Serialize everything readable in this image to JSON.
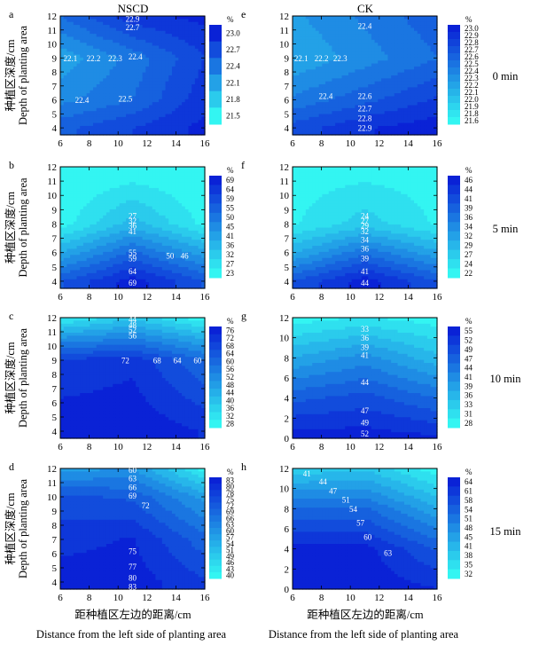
{
  "figure": {
    "col_titles": [
      "NSCD",
      "CK"
    ],
    "row_labels": [
      "0 min",
      "5 min",
      "10 min",
      "15 min"
    ],
    "ylabel_cn": "种植区深度/cm",
    "ylabel_en": "Depth of planting area",
    "xlabel_cn": "距种植区左边的距离/cm",
    "xlabel_en": "Distance from the left side of planting area",
    "colorbar_unit": "%",
    "colors": {
      "low": "#33f5f2",
      "high": "#0a22d6",
      "label": "#ffffff",
      "axis": "#000000"
    }
  },
  "chart_data": [
    {
      "id": "a",
      "type": "heatmap",
      "title": "NSCD",
      "time": "0 min",
      "xlim": [
        6,
        16
      ],
      "ylim": [
        3.5,
        12
      ],
      "xticks": [
        6,
        8,
        10,
        12,
        14,
        16
      ],
      "yticks": [
        4,
        5,
        6,
        7,
        8,
        9,
        10,
        11,
        12
      ],
      "zlim": [
        21.45,
        23.1
      ],
      "colorbar_ticks": [
        "23.0",
        "22.7",
        "22.4",
        "22.1",
        "21.8",
        "21.5"
      ],
      "gradient": [
        [
          6,
          4,
          22.6
        ],
        [
          11,
          4,
          22.8
        ],
        [
          16,
          4,
          23.0
        ],
        [
          6,
          6,
          22.3
        ],
        [
          11,
          6,
          22.5
        ],
        [
          16,
          6,
          22.9
        ],
        [
          6,
          9,
          22.1
        ],
        [
          11,
          9,
          22.4
        ],
        [
          16,
          9,
          22.8
        ],
        [
          6,
          12,
          22.5
        ],
        [
          11,
          12,
          22.9
        ],
        [
          16,
          12,
          23.0
        ]
      ],
      "labels": [
        [
          "22.9",
          11,
          11.8
        ],
        [
          "22.7",
          11,
          11.2
        ],
        [
          "22.1",
          6.7,
          9
        ],
        [
          "22.2",
          8.3,
          9
        ],
        [
          "22.3",
          9.8,
          9
        ],
        [
          "22.4",
          11.2,
          9.1
        ],
        [
          "22.4",
          7.5,
          6
        ],
        [
          "22.5",
          10.5,
          6.1
        ]
      ]
    },
    {
      "id": "e",
      "type": "heatmap",
      "title": "CK",
      "time": "0 min",
      "xlim": [
        6,
        16
      ],
      "ylim": [
        3.5,
        12
      ],
      "xticks": [
        6,
        8,
        10,
        12,
        14,
        16
      ],
      "yticks": [
        4,
        5,
        6,
        7,
        8,
        9,
        10,
        11,
        12
      ],
      "zlim": [
        21.55,
        23.05
      ],
      "colorbar_ticks": [
        "23.0",
        "22.9",
        "22.8",
        "22.7",
        "22.6",
        "22.5",
        "22.4",
        "22.3",
        "22.2",
        "22.1",
        "22.0",
        "21.9",
        "21.8",
        "21.6"
      ],
      "gradient": [
        [
          6,
          4,
          22.7
        ],
        [
          11,
          4,
          22.9
        ],
        [
          16,
          4,
          23.0
        ],
        [
          6,
          6,
          22.4
        ],
        [
          11,
          6,
          22.6
        ],
        [
          16,
          6,
          22.8
        ],
        [
          6,
          9,
          22.1
        ],
        [
          11,
          9,
          22.3
        ],
        [
          16,
          9,
          22.5
        ],
        [
          6,
          12,
          22.2
        ],
        [
          11,
          12,
          22.4
        ],
        [
          16,
          12,
          22.6
        ]
      ],
      "labels": [
        [
          "22.4",
          11,
          11.3
        ],
        [
          "22.1",
          6.6,
          9
        ],
        [
          "22.2",
          8,
          9
        ],
        [
          "22.3",
          9.3,
          9
        ],
        [
          "22.4",
          8.3,
          6.3
        ],
        [
          "22.6",
          11,
          6.3
        ],
        [
          "22.7",
          11,
          5.4
        ],
        [
          "22.8",
          11,
          4.7
        ],
        [
          "22.9",
          11,
          4
        ]
      ]
    },
    {
      "id": "b",
      "type": "heatmap",
      "title": "",
      "time": "5 min",
      "xlim": [
        6,
        16
      ],
      "ylim": [
        3.5,
        12
      ],
      "xticks": [
        6,
        8,
        10,
        12,
        14,
        16
      ],
      "yticks": [
        4,
        5,
        6,
        7,
        8,
        9,
        10,
        11,
        12
      ],
      "zlim": [
        22,
        72
      ],
      "colorbar_ticks": [
        "69",
        "64",
        "59",
        "55",
        "50",
        "45",
        "41",
        "36",
        "32",
        "27",
        "23"
      ],
      "gradient": [
        [
          6,
          4,
          58
        ],
        [
          11,
          4,
          70
        ],
        [
          16,
          4,
          58
        ],
        [
          6,
          6,
          40
        ],
        [
          11,
          6,
          55
        ],
        [
          16,
          6,
          42
        ],
        [
          6,
          8,
          24
        ],
        [
          11,
          8,
          38
        ],
        [
          16,
          8,
          25
        ],
        [
          6,
          12,
          22
        ],
        [
          11,
          12,
          22
        ],
        [
          16,
          12,
          22
        ]
      ],
      "labels": [
        [
          "27",
          11,
          8.6
        ],
        [
          "32",
          11,
          8.25
        ],
        [
          "36",
          11,
          7.9
        ],
        [
          "41",
          11,
          7.5
        ],
        [
          "55",
          11,
          6
        ],
        [
          "59",
          11,
          5.6
        ],
        [
          "50",
          13.6,
          5.8
        ],
        [
          "46",
          14.6,
          5.8
        ],
        [
          "64",
          11,
          4.7
        ],
        [
          "69",
          11,
          3.9
        ]
      ]
    },
    {
      "id": "f",
      "type": "heatmap",
      "title": "",
      "time": "5 min",
      "xlim": [
        6,
        16
      ],
      "ylim": [
        3.5,
        12
      ],
      "xticks": [
        6,
        8,
        10,
        12,
        14,
        16
      ],
      "yticks": [
        4,
        5,
        6,
        7,
        8,
        9,
        10,
        11,
        12
      ],
      "zlim": [
        21,
        47
      ],
      "colorbar_ticks": [
        "46",
        "44",
        "41",
        "39",
        "36",
        "34",
        "32",
        "29",
        "27",
        "24",
        "22"
      ],
      "gradient": [
        [
          6,
          4,
          40
        ],
        [
          11,
          4,
          46
        ],
        [
          16,
          4,
          40
        ],
        [
          6,
          6,
          30
        ],
        [
          11,
          6,
          37
        ],
        [
          16,
          6,
          31
        ],
        [
          6,
          8,
          23
        ],
        [
          11,
          8,
          27
        ],
        [
          16,
          8,
          23
        ],
        [
          6,
          12,
          22
        ],
        [
          11,
          12,
          22
        ],
        [
          16,
          12,
          22
        ]
      ],
      "labels": [
        [
          "24",
          11,
          8.6
        ],
        [
          "27",
          11,
          8.25
        ],
        [
          "29",
          11,
          7.9
        ],
        [
          "32",
          11,
          7.5
        ],
        [
          "34",
          11,
          6.9
        ],
        [
          "36",
          11,
          6.3
        ],
        [
          "39",
          11,
          5.6
        ],
        [
          "41",
          11,
          4.7
        ],
        [
          "44",
          11,
          3.9
        ]
      ]
    },
    {
      "id": "c",
      "type": "heatmap",
      "title": "",
      "time": "10 min",
      "xlim": [
        6,
        16
      ],
      "ylim": [
        3.5,
        12
      ],
      "xticks": [
        6,
        8,
        10,
        12,
        14,
        16
      ],
      "yticks": [
        4,
        5,
        6,
        7,
        8,
        9,
        10,
        11,
        12
      ],
      "zlim": [
        27,
        79
      ],
      "colorbar_ticks": [
        "76",
        "72",
        "68",
        "64",
        "60",
        "56",
        "52",
        "48",
        "44",
        "40",
        "36",
        "32",
        "28"
      ],
      "gradient": [
        [
          6,
          4,
          78
        ],
        [
          11,
          4,
          78
        ],
        [
          16,
          4,
          74
        ],
        [
          6,
          9,
          70
        ],
        [
          11,
          9,
          73
        ],
        [
          16,
          9,
          60
        ],
        [
          6,
          10.5,
          52
        ],
        [
          11,
          10.5,
          56
        ],
        [
          16,
          10.5,
          46
        ],
        [
          6,
          12,
          30
        ],
        [
          11,
          12,
          40
        ],
        [
          16,
          12,
          28
        ]
      ],
      "labels": [
        [
          "44",
          11,
          11.9
        ],
        [
          "48",
          11,
          11.5
        ],
        [
          "52",
          11,
          11.15
        ],
        [
          "56",
          11,
          10.75
        ],
        [
          "72",
          10.5,
          9
        ],
        [
          "68",
          12.7,
          9
        ],
        [
          "64",
          14.1,
          9
        ],
        [
          "60",
          15.5,
          9
        ]
      ]
    },
    {
      "id": "g",
      "type": "heatmap",
      "title": "",
      "time": "10 min",
      "xlim": [
        6,
        16
      ],
      "ylim": [
        0,
        12
      ],
      "xticks": [
        6,
        8,
        10,
        12,
        14,
        16
      ],
      "yticks": [
        0,
        2,
        4,
        6,
        8,
        10,
        12
      ],
      "zlim": [
        27,
        57
      ],
      "colorbar_ticks": [
        "55",
        "52",
        "49",
        "47",
        "44",
        "41",
        "39",
        "36",
        "33",
        "31",
        "28"
      ],
      "gradient": [
        [
          6,
          0,
          56
        ],
        [
          11,
          0,
          56
        ],
        [
          16,
          0,
          55
        ],
        [
          6,
          4,
          48
        ],
        [
          11,
          4,
          50
        ],
        [
          16,
          4,
          46
        ],
        [
          6,
          8,
          38
        ],
        [
          11,
          8,
          42
        ],
        [
          16,
          8,
          36
        ],
        [
          6,
          12,
          28
        ],
        [
          11,
          12,
          30
        ],
        [
          16,
          12,
          28
        ]
      ],
      "labels": [
        [
          "33",
          11,
          10.9
        ],
        [
          "36",
          11,
          10
        ],
        [
          "39",
          11,
          9.1
        ],
        [
          "41",
          11,
          8.3
        ],
        [
          "44",
          11,
          5.6
        ],
        [
          "47",
          11,
          2.8
        ],
        [
          "49",
          11,
          1.6
        ],
        [
          "52",
          11,
          0.5
        ]
      ]
    },
    {
      "id": "d",
      "type": "heatmap",
      "title": "",
      "time": "15 min",
      "xlim": [
        6,
        16
      ],
      "ylim": [
        3.5,
        12
      ],
      "xticks": [
        6,
        8,
        10,
        12,
        14,
        16
      ],
      "yticks": [
        4,
        5,
        6,
        7,
        8,
        9,
        10,
        11,
        12
      ],
      "zlim": [
        38,
        86
      ],
      "colorbar_ticks": [
        "83",
        "80",
        "78",
        "75",
        "72",
        "69",
        "66",
        "63",
        "60",
        "57",
        "54",
        "51",
        "49",
        "46",
        "43",
        "40"
      ],
      "gradient": [
        [
          6,
          4,
          84
        ],
        [
          11,
          4,
          84
        ],
        [
          16,
          4,
          78
        ],
        [
          6,
          7,
          80
        ],
        [
          11,
          7,
          82
        ],
        [
          16,
          7,
          70
        ],
        [
          6,
          10,
          74
        ],
        [
          11,
          10,
          72
        ],
        [
          16,
          10,
          58
        ],
        [
          6,
          12,
          58
        ],
        [
          11,
          12,
          60
        ],
        [
          16,
          12,
          40
        ]
      ],
      "labels": [
        [
          "60",
          11,
          11.9
        ],
        [
          "63",
          11,
          11.3
        ],
        [
          "66",
          11,
          10.7
        ],
        [
          "69",
          11,
          10.1
        ],
        [
          "72",
          11.9,
          9.4
        ],
        [
          "75",
          11,
          6.2
        ],
        [
          "77",
          11,
          5.1
        ],
        [
          "80",
          11,
          4.3
        ],
        [
          "83",
          11,
          3.7
        ]
      ]
    },
    {
      "id": "h",
      "type": "heatmap",
      "title": "",
      "time": "15 min",
      "xlim": [
        6,
        16
      ],
      "ylim": [
        0,
        12
      ],
      "xticks": [
        6,
        8,
        10,
        12,
        14,
        16
      ],
      "yticks": [
        0,
        2,
        4,
        6,
        8,
        10,
        12
      ],
      "zlim": [
        31,
        66
      ],
      "colorbar_ticks": [
        "64",
        "61",
        "58",
        "54",
        "51",
        "48",
        "45",
        "41",
        "38",
        "35",
        "32"
      ],
      "gradient": [
        [
          6,
          0,
          65
        ],
        [
          11,
          0,
          65
        ],
        [
          16,
          0,
          63
        ],
        [
          6,
          4,
          64
        ],
        [
          11,
          4,
          64
        ],
        [
          16,
          4,
          56
        ],
        [
          6,
          8,
          54
        ],
        [
          11,
          8,
          54
        ],
        [
          16,
          8,
          44
        ],
        [
          6,
          12,
          38
        ],
        [
          11,
          12,
          40
        ],
        [
          16,
          12,
          32
        ]
      ],
      "labels": [
        [
          "41",
          7,
          11.5
        ],
        [
          "44",
          8.1,
          10.7
        ],
        [
          "47",
          8.8,
          9.8
        ],
        [
          "51",
          9.7,
          8.9
        ],
        [
          "54",
          10.2,
          8
        ],
        [
          "57",
          10.7,
          6.6
        ],
        [
          "60",
          11.2,
          5.2
        ],
        [
          "63",
          12.6,
          3.6
        ]
      ]
    }
  ]
}
